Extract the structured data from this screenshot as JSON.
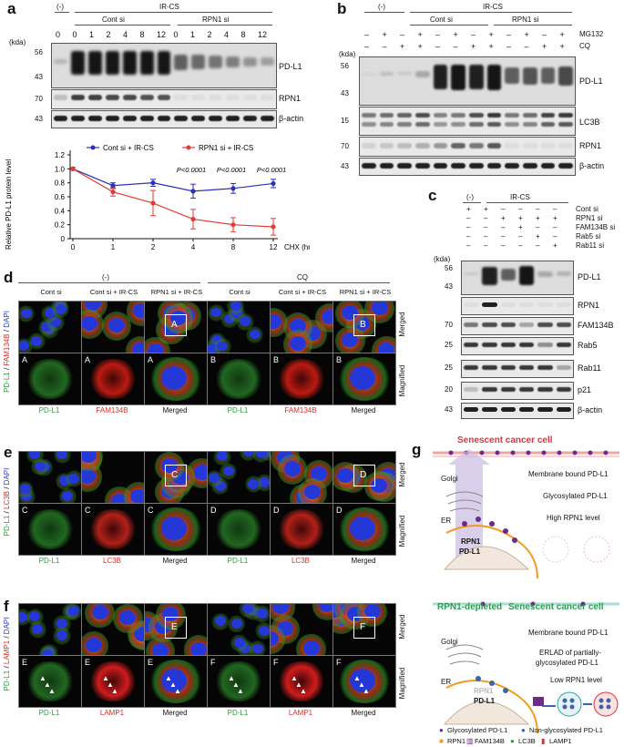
{
  "panels": {
    "a": {
      "label": "a",
      "cond_neg": "(-)",
      "cond_ir": "IR-CS",
      "group_cont": "Cont si",
      "group_rpn1": "RPN1 si",
      "timepoints": [
        "0",
        "0",
        "1",
        "2",
        "4",
        "8",
        "12",
        "0",
        "1",
        "2",
        "4",
        "8",
        "12"
      ],
      "kda": "(kda)",
      "blot_rows": [
        {
          "name": "PD-L1",
          "markers": [
            "56",
            "43"
          ]
        },
        {
          "name": "RPN1",
          "markers": [
            "70"
          ]
        },
        {
          "name": "β-actin",
          "markers": [
            "43"
          ]
        }
      ]
    },
    "b": {
      "label": "b",
      "cond_neg": "(-)",
      "cond_ir": "IR-CS",
      "group_cont": "Cont si",
      "group_rpn1": "RPN1 si",
      "treat1": "MG132",
      "treat2": "CQ",
      "row1": [
        "–",
        "+",
        "–",
        "+",
        "–",
        "+",
        "–",
        "+",
        "–",
        "+",
        "–",
        "+"
      ],
      "row2": [
        "–",
        "–",
        "+",
        "+",
        "–",
        "–",
        "+",
        "+",
        "–",
        "–",
        "+",
        "+"
      ],
      "kda": "(kda)",
      "blot_rows": [
        {
          "name": "PD-L1",
          "markers": [
            "56",
            "43"
          ]
        },
        {
          "name": "LC3B",
          "markers": [
            "15"
          ]
        },
        {
          "name": "RPN1",
          "markers": [
            "70"
          ]
        },
        {
          "name": "β-actin",
          "markers": [
            "43"
          ]
        }
      ]
    },
    "c": {
      "label": "c",
      "cond_neg": "(-)",
      "cond_ir": "IR-CS",
      "kda": "(kda)",
      "treatments": [
        {
          "name": "Cont si",
          "signs": [
            "+",
            "+",
            "–",
            "–",
            "–",
            "–"
          ]
        },
        {
          "name": "RPN1 si",
          "signs": [
            "–",
            "–",
            "+",
            "+",
            "+",
            "+"
          ]
        },
        {
          "name": "FAM134B si",
          "signs": [
            "–",
            "–",
            "–",
            "+",
            "–",
            "–"
          ]
        },
        {
          "name": "Rab5 si",
          "signs": [
            "–",
            "–",
            "–",
            "–",
            "+",
            "–"
          ]
        },
        {
          "name": "Rab11 si",
          "signs": [
            "–",
            "–",
            "–",
            "–",
            "–",
            "+"
          ]
        }
      ],
      "blot_rows": [
        {
          "name": "PD-L1",
          "markers": [
            "56",
            "43"
          ]
        },
        {
          "name": "RPN1",
          "markers": []
        },
        {
          "name": "FAM134B",
          "markers": [
            "70"
          ]
        },
        {
          "name": "Rab5",
          "markers": [
            "25"
          ]
        },
        {
          "name": "Rab11",
          "markers": [
            "25"
          ]
        },
        {
          "name": "p21",
          "markers": [
            "20"
          ]
        },
        {
          "name": "β-actin",
          "markers": [
            "43"
          ]
        }
      ]
    },
    "d": {
      "label": "d",
      "cond_neg": "(-)",
      "cond_cq": "CQ",
      "cols": [
        "Cont si",
        "Cont si + IR-CS",
        "RPN1 si + IR-CS",
        "Cont si",
        "Cont si + IR-CS",
        "RPN1 si + IR-CS"
      ],
      "side_green": "PD-L1",
      "side_red": "FAM134B",
      "side_blue": "DAPI",
      "row_merged": "Merged",
      "row_mag": "Magnified",
      "bottom": [
        "PD-L1",
        "FAM134B",
        "Merged",
        "PD-L1",
        "FAM134B",
        "Merged"
      ],
      "box_a": "A",
      "box_b": "B"
    },
    "e": {
      "label": "e",
      "side_green": "PD-L1",
      "side_red": "LC3B",
      "side_blue": "DAPI",
      "row_merged": "Merged",
      "row_mag": "Magnified",
      "bottom": [
        "PD-L1",
        "LC3B",
        "Merged",
        "PD-L1",
        "LC3B",
        "Merged"
      ],
      "box_a": "C",
      "box_b": "D"
    },
    "f": {
      "label": "f",
      "side_green": "PD-L1",
      "side_red": "LAMP1",
      "side_blue": "DAPI",
      "row_merged": "Merged",
      "row_mag": "Magnified",
      "bottom": [
        "PD-L1",
        "LAMP1",
        "Merged",
        "PD-L1",
        "LAMP1",
        "Merged"
      ],
      "box_a": "E",
      "box_b": "F"
    },
    "g": {
      "label": "g",
      "top_title": "Senescent cancer cell",
      "golgi": "Golgi",
      "er": "ER",
      "rpn1": "RPN1",
      "pdl1": "PD-L1",
      "top_lines": [
        "Membrane bound PD-L1",
        "Glycosylated PD-L1",
        "High RPN1 level"
      ],
      "bottom_title_a": "RPN1-depleted",
      "bottom_title_b": "Senescent cancer cell",
      "bottom_lines": [
        "Membrane bound PD-L1",
        "ERLAD of partially-",
        "glycosylated PD-L1",
        "Low RPN1 level"
      ],
      "legend": [
        "Glycosylated PD-L1",
        "Non-glycosylated PD-L1",
        "RPN1",
        "FAM134B",
        "LC3B",
        "LAMP1"
      ],
      "colors": {
        "red": "#e0302a",
        "blue": "#3d64a8",
        "purple": "#6a2b8c",
        "orange": "#f29a1d",
        "green": "#2e9c47",
        "teal": "#2aa59b"
      }
    }
  },
  "chart_data": {
    "type": "line",
    "x": [
      "0",
      "1",
      "2",
      "4",
      "8",
      "12"
    ],
    "xlabel": "CHX (hr)",
    "ylabel": "Relative PD-L1 protein level",
    "yticks": [
      "0",
      "0.2",
      "0.4",
      "0.6",
      "0.8",
      "1.0",
      "1.2"
    ],
    "ylim": [
      0,
      1.2
    ],
    "series": [
      {
        "name": "Cont si + IR-CS",
        "color": "#2933b5",
        "values": [
          1.0,
          0.76,
          0.8,
          0.68,
          0.72,
          0.79
        ],
        "err": [
          0.02,
          0.04,
          0.05,
          0.1,
          0.07,
          0.06
        ]
      },
      {
        "name": "RPN1 si + IR-CS",
        "color": "#e23d35",
        "values": [
          1.0,
          0.67,
          0.51,
          0.28,
          0.2,
          0.17
        ],
        "err": [
          0.02,
          0.06,
          0.18,
          0.14,
          0.1,
          0.12
        ]
      }
    ],
    "annotations": [
      "P<0.0001",
      "P<0.0001",
      "P<0.0001"
    ],
    "legend_position": "top"
  }
}
